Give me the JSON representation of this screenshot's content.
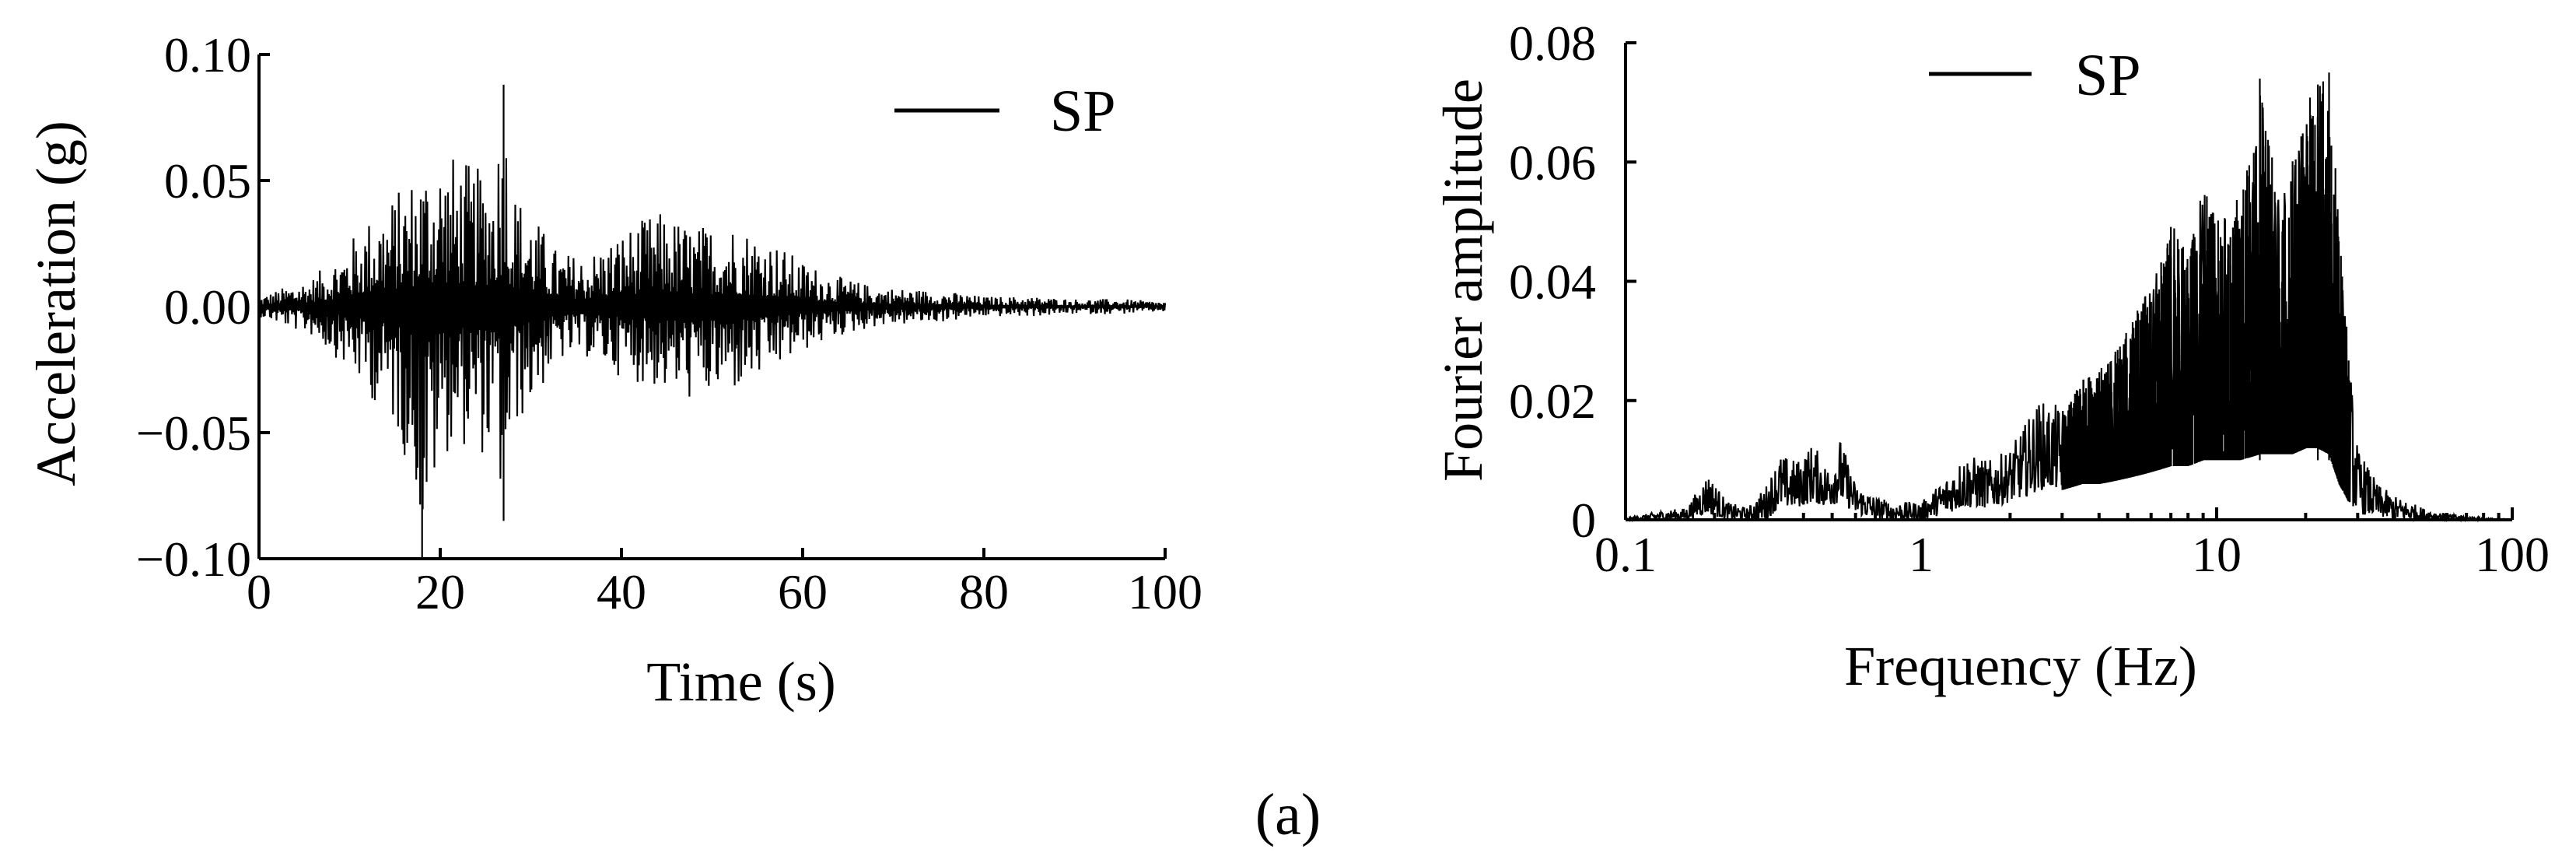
{
  "caption": "(a)",
  "chart_data": [
    {
      "type": "line",
      "xlabel": "Time (s)",
      "ylabel": "Acceleration (g)",
      "xlim": [
        0,
        100
      ],
      "ylim": [
        -0.1,
        0.1
      ],
      "xticks": [
        0,
        20,
        40,
        60,
        80,
        100
      ],
      "xtick_labels": [
        "0",
        "20",
        "40",
        "60",
        "80",
        "100"
      ],
      "yticks": [
        -0.1,
        -0.05,
        0.0,
        0.05,
        0.1
      ],
      "ytick_labels": [
        "−0.10",
        "−0.05",
        "0.00",
        "0.05",
        "0.10"
      ],
      "legend": {
        "position": "top-right"
      },
      "grid": false,
      "series": [
        {
          "name": "SP",
          "description": "acceleration time history",
          "x": [
            0,
            3,
            6,
            9,
            12,
            15,
            17.5,
            18,
            20,
            22,
            24,
            26,
            27,
            28,
            30,
            33,
            36,
            40,
            44,
            48,
            52,
            56,
            60,
            64,
            68,
            72,
            76,
            80,
            85,
            90,
            95,
            100
          ],
          "y_max": [
            0.004,
            0.008,
            0.012,
            0.022,
            0.035,
            0.045,
            0.055,
            0.058,
            0.062,
            0.06,
            0.055,
            0.058,
            0.088,
            0.048,
            0.038,
            0.022,
            0.02,
            0.03,
            0.038,
            0.032,
            0.034,
            0.028,
            0.018,
            0.012,
            0.008,
            0.007,
            0.006,
            0.004,
            0.004,
            0.003,
            0.003,
            0.002
          ],
          "y_min": [
            -0.004,
            -0.008,
            -0.012,
            -0.022,
            -0.035,
            -0.048,
            -0.075,
            -0.1,
            -0.06,
            -0.055,
            -0.058,
            -0.062,
            -0.085,
            -0.05,
            -0.04,
            -0.022,
            -0.02,
            -0.028,
            -0.033,
            -0.038,
            -0.035,
            -0.028,
            -0.018,
            -0.012,
            -0.008,
            -0.007,
            -0.006,
            -0.004,
            -0.004,
            -0.003,
            -0.003,
            -0.002
          ]
        }
      ]
    },
    {
      "type": "line",
      "xlabel": "Frequency (Hz)",
      "ylabel": "Fourier amplitude",
      "xscale": "log",
      "xlim": [
        0.1,
        100
      ],
      "ylim": [
        0,
        0.08
      ],
      "xticks": [
        0.1,
        1,
        10,
        100
      ],
      "xtick_labels": [
        "0.1",
        "1",
        "10",
        "100"
      ],
      "yticks": [
        0,
        0.02,
        0.04,
        0.06,
        0.08
      ],
      "ytick_labels": [
        "0",
        "0.02",
        "0.04",
        "0.06",
        "0.08"
      ],
      "legend": {
        "position": "top-center"
      },
      "grid": false,
      "series": [
        {
          "name": "SP",
          "description": "Fourier amplitude spectrum",
          "x": [
            0.1,
            0.13,
            0.16,
            0.19,
            0.22,
            0.26,
            0.3,
            0.33,
            0.38,
            0.43,
            0.48,
            0.53,
            0.6,
            0.7,
            0.8,
            1.0,
            1.2,
            1.4,
            1.7,
            2.0,
            2.3,
            2.5,
            3.0,
            3.5,
            4.0,
            5.0,
            6.0,
            7.0,
            8.0,
            9.0,
            10,
            12,
            14,
            16,
            18,
            20,
            22,
            24,
            26,
            28,
            30,
            35,
            40,
            50,
            60,
            80,
            100
          ],
          "peak": [
            0.0002,
            0.0015,
            0.002,
            0.008,
            0.003,
            0.002,
            0.006,
            0.011,
            0.01,
            0.013,
            0.009,
            0.014,
            0.006,
            0.004,
            0.003,
            0.003,
            0.007,
            0.011,
            0.01,
            0.012,
            0.017,
            0.02,
            0.019,
            0.024,
            0.025,
            0.032,
            0.04,
            0.05,
            0.045,
            0.056,
            0.05,
            0.055,
            0.074,
            0.055,
            0.06,
            0.07,
            0.073,
            0.075,
            0.05,
            0.028,
            0.012,
            0.006,
            0.004,
            0.002,
            0.001,
            0.0003,
            0.0001
          ],
          "floor": [
            0.0,
            0.0,
            0.0,
            0.001,
            0.0,
            0.0,
            0.0,
            0.002,
            0.002,
            0.003,
            0.002,
            0.003,
            0.001,
            0.0,
            0.0,
            0.0,
            0.001,
            0.002,
            0.002,
            0.003,
            0.004,
            0.005,
            0.005,
            0.006,
            0.006,
            0.007,
            0.008,
            0.009,
            0.009,
            0.01,
            0.01,
            0.01,
            0.011,
            0.011,
            0.011,
            0.012,
            0.012,
            0.011,
            0.006,
            0.003,
            0.001,
            0.0005,
            0.0,
            0.0,
            0.0,
            0.0,
            0.0
          ]
        }
      ]
    }
  ]
}
